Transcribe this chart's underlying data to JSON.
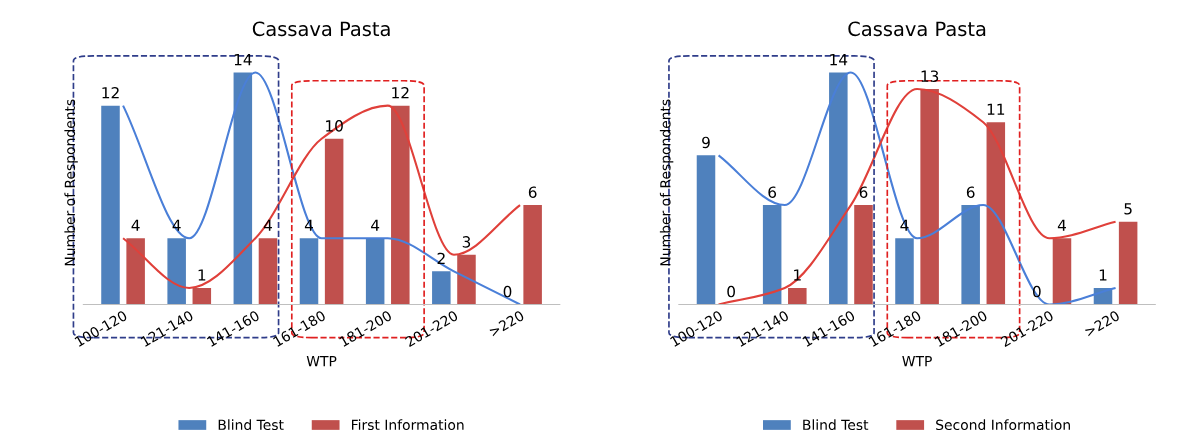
{
  "chart_data": [
    {
      "type": "bar",
      "title": "Cassava Pasta",
      "xlabel": "WTP",
      "ylabel": "Number of Respondents",
      "categories": [
        "100-120",
        "121-140",
        "141-160",
        "161-180",
        "181-200",
        "201-220",
        ">220"
      ],
      "series": [
        {
          "name": "Blind Test",
          "color": "#4f81bd",
          "values": [
            12,
            4,
            14,
            4,
            4,
            2,
            0
          ]
        },
        {
          "name": "First Information",
          "color": "#c0504d",
          "values": [
            4,
            1,
            4,
            10,
            12,
            3,
            6
          ]
        },
        {
          "type": "line",
          "color": "#4a7fd8",
          "values": [
            12,
            4,
            14,
            4,
            4,
            2,
            0
          ],
          "value_labels": [
            null,
            null,
            null,
            null,
            null,
            null,
            null
          ]
        },
        {
          "type": "line",
          "color": "#e0403a",
          "values": [
            4,
            1,
            4,
            10,
            12,
            3,
            6
          ],
          "value_labels": [
            null,
            null,
            null,
            null,
            null,
            null,
            null
          ]
        }
      ],
      "tick_labels": "x",
      "data_labels": true,
      "legend": "bottom",
      "grid": false
    },
    {
      "type": "bar",
      "title": "Cassava Pasta",
      "xlabel": "WTP",
      "ylabel": "Number of Respondents",
      "categories": [
        "100-120",
        "121-140",
        "141-160",
        "161-180",
        "181-200",
        "201-220",
        ">220"
      ],
      "series": [
        {
          "name": "Blind Test",
          "color": "#4f81bd",
          "values": [
            9,
            6,
            14,
            4,
            6,
            0,
            1
          ]
        },
        {
          "name": "Second Information",
          "color": "#c0504d",
          "values": [
            0,
            1,
            6,
            13,
            11,
            4,
            5
          ]
        },
        {
          "type": "line",
          "color": "#4a7fd8",
          "values": [
            9,
            6,
            14,
            4,
            6,
            0,
            1
          ],
          "value_labels": [
            null,
            null,
            null,
            null,
            null,
            null,
            null
          ]
        },
        {
          "type": "line",
          "color": "#e0403a",
          "values": [
            0,
            1,
            6,
            13,
            11,
            4,
            5
          ],
          "value_labels": [
            null,
            null,
            null,
            null,
            null,
            null,
            null
          ]
        }
      ],
      "tick_labels": "x",
      "data_labels": true,
      "legend": "bottom",
      "grid": false
    }
  ]
}
